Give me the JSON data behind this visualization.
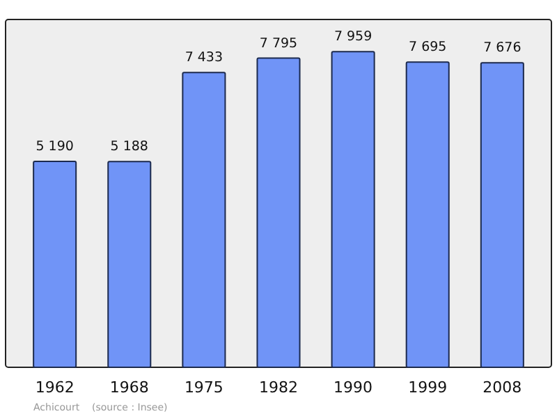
{
  "chart_data": {
    "type": "bar",
    "categories": [
      "1962",
      "1968",
      "1975",
      "1982",
      "1990",
      "1999",
      "2008"
    ],
    "values": [
      5190,
      5188,
      7433,
      7795,
      7959,
      7695,
      7676
    ],
    "value_labels": [
      "5 190",
      "5 188",
      "7 433",
      "7 795",
      "7 959",
      "7 695",
      "7 676"
    ],
    "color": "#7094f7",
    "ylim": [
      0,
      8770
    ],
    "tick_labels": "x",
    "annotations": [
      "Achicourt    (source : Insee)"
    ]
  }
}
